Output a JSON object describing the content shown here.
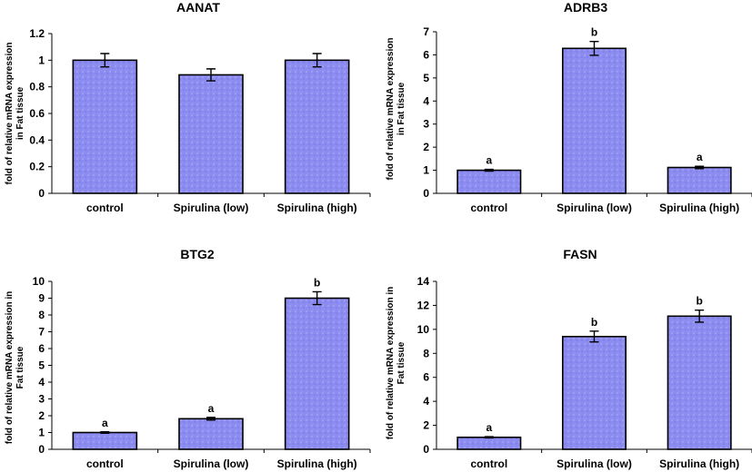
{
  "chart_data": [
    {
      "type": "bar",
      "title": "AANAT",
      "ylabel": [
        "fold of relative mRNA expression",
        "in Fat tissue"
      ],
      "categories": [
        "control",
        "Spirulina (low)",
        "Spirulina (high)"
      ],
      "values": [
        1.0,
        0.89,
        1.0
      ],
      "errors": [
        0.05,
        0.045,
        0.05
      ],
      "significance": [
        "",
        "",
        ""
      ],
      "ylim": [
        0,
        1.2
      ],
      "yticks": [
        "0",
        "0.2",
        "0.4",
        "0.6",
        "0.8",
        "1",
        "1.2"
      ],
      "bar_color": "#8c8cf0"
    },
    {
      "type": "bar",
      "title": "ADRB3",
      "ylabel": [
        "fold of relative mRNA expression",
        "in Fat tissue"
      ],
      "categories": [
        "control",
        "Spirulina (low)",
        "Spirulina (high)"
      ],
      "values": [
        1.0,
        6.28,
        1.12
      ],
      "errors": [
        0.04,
        0.3,
        0.05
      ],
      "significance": [
        "a",
        "b",
        "a"
      ],
      "ylim": [
        0,
        7
      ],
      "yticks": [
        "0",
        "1",
        "2",
        "3",
        "4",
        "5",
        "6",
        "7"
      ],
      "bar_color": "#8c8cf0"
    },
    {
      "type": "bar",
      "title": "BTG2",
      "ylabel": [
        "fold of relative mRNA expression in",
        "Fat tissue"
      ],
      "categories": [
        "control",
        "Spirulina (low)",
        "Spirulina (high)"
      ],
      "values": [
        1.0,
        1.82,
        9.0
      ],
      "errors": [
        0.04,
        0.08,
        0.38
      ],
      "significance": [
        "a",
        "a",
        "b"
      ],
      "ylim": [
        0,
        10
      ],
      "yticks": [
        "0",
        "1",
        "2",
        "3",
        "4",
        "5",
        "6",
        "7",
        "8",
        "9",
        "10"
      ],
      "bar_color": "#8c8cf0"
    },
    {
      "type": "bar",
      "title": "FASN",
      "ylabel": [
        "fold of relative mRNA expression in",
        "Fat tissue"
      ],
      "categories": [
        "control",
        "Spirulina (low)",
        "Spirulina (high)"
      ],
      "values": [
        1.0,
        9.4,
        11.1
      ],
      "errors": [
        0.05,
        0.45,
        0.5
      ],
      "significance": [
        "a",
        "b",
        "b"
      ],
      "ylim": [
        0,
        14
      ],
      "yticks": [
        "0",
        "2",
        "4",
        "6",
        "8",
        "10",
        "12",
        "14"
      ],
      "bar_color": "#8c8cf0"
    }
  ]
}
